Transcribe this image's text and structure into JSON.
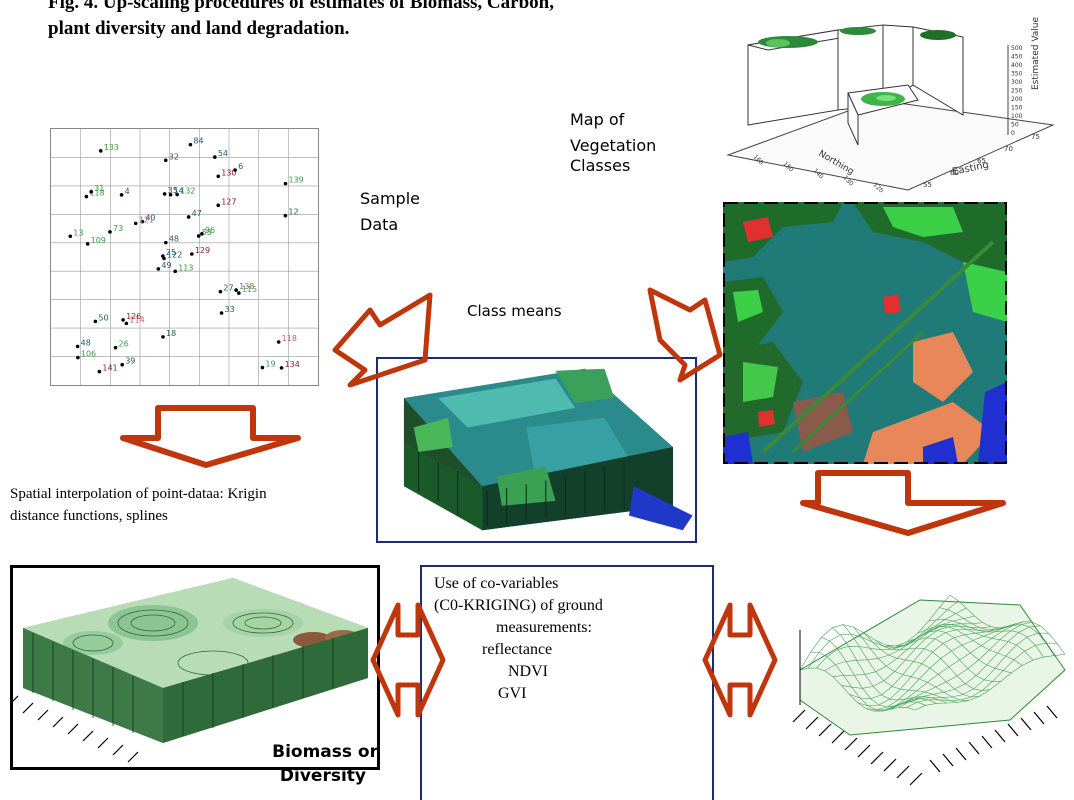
{
  "title": {
    "line1": "Fig. 4. Up-scaling procedures of estimates of Biomass, Carbon,",
    "line2": "plant diversity and land degradation."
  },
  "labels": {
    "map_of": "Map of",
    "vegetation": "Vegetation",
    "classes": "Classes",
    "sample": "Sample",
    "data": "Data",
    "class_means": "Class means",
    "interp_line1": "Spatial interpolation of point-dataa: Krigin",
    "interp_line2": "distance functions, splines",
    "biomass_line1": "Biomass or",
    "biomass_line2": "Diversity"
  },
  "covariables": {
    "line1": "Use of co-variables",
    "line2": "(C0-KRIGING) of ground",
    "line3": "measurements:",
    "line4": "reflectance",
    "line5": "NDVI",
    "line6": "GVI"
  },
  "mesh3d_axes": {
    "z_label": "Estimated Value",
    "z_ticks": [
      "0",
      "50",
      "100",
      "150",
      "200",
      "250",
      "300",
      "350",
      "400",
      "450",
      "500"
    ],
    "y_label": "Northing",
    "y_ticks": [
      "120",
      "130",
      "140",
      "150",
      "160"
    ],
    "x_label": "Easting",
    "x_ticks": [
      "55",
      "60",
      "65",
      "70",
      "75"
    ]
  },
  "scatter_points": [
    {
      "id": "113",
      "color": "#3a9a44"
    },
    {
      "id": "118",
      "color": "#3a9a44"
    },
    {
      "id": "122",
      "color": "#1f5a6a"
    },
    {
      "id": "48",
      "color": "#1f5a6a"
    },
    {
      "id": "55",
      "color": "#3a9a44"
    },
    {
      "id": "114",
      "color": "#c06080"
    },
    {
      "id": "54",
      "color": "#1f5a6a"
    },
    {
      "id": "132",
      "color": "#3a9a44"
    },
    {
      "id": "130",
      "color": "#8a2020"
    },
    {
      "id": "129",
      "color": "#8a2020"
    },
    {
      "id": "133",
      "color": "#3a9a44"
    },
    {
      "id": "134",
      "color": "#8a2020"
    },
    {
      "id": "109",
      "color": "#3a9a44"
    },
    {
      "id": "139",
      "color": "#3a9a44"
    },
    {
      "id": "49",
      "color": "#1f5a6a"
    },
    {
      "id": "127",
      "color": "#8a2020"
    },
    {
      "id": "141",
      "color": "#8a2020"
    },
    {
      "id": "35",
      "color": "#1f5a6a"
    },
    {
      "id": "47",
      "color": "#1f5a6a"
    },
    {
      "id": "50",
      "color": "#1f5a6a"
    },
    {
      "id": "40",
      "color": "#1f5a6a"
    },
    {
      "id": "106",
      "color": "#3a9a44"
    },
    {
      "id": "26",
      "color": "#3a9a44"
    },
    {
      "id": "14",
      "color": "#1f5a6a"
    },
    {
      "id": "96",
      "color": "#3a9a44"
    },
    {
      "id": "115",
      "color": "#c06080"
    },
    {
      "id": "31",
      "color": "#3a9a44"
    },
    {
      "id": "32",
      "color": "#1f5a6a"
    },
    {
      "id": "13",
      "color": "#3a9a44"
    },
    {
      "id": "27",
      "color": "#1f5a6a"
    },
    {
      "id": "12",
      "color": "#1f5a6a"
    },
    {
      "id": "25",
      "color": "#1f5a6a"
    },
    {
      "id": "18",
      "color": "#1f5a6a"
    },
    {
      "id": "48",
      "color": "#1f5a6a"
    },
    {
      "id": "4",
      "color": "#1f5a6a"
    },
    {
      "id": "6",
      "color": "#1f5a6a"
    },
    {
      "id": "126",
      "color": "#8a2020"
    },
    {
      "id": "19",
      "color": "#3a9a44"
    },
    {
      "id": "118",
      "color": "#c06080"
    },
    {
      "id": "138",
      "color": "#3a9a44"
    },
    {
      "id": "84",
      "color": "#1f5a6a"
    },
    {
      "id": "121",
      "color": "#c06080"
    },
    {
      "id": "73",
      "color": "#3a9a44"
    },
    {
      "id": "33",
      "color": "#1f5a6a"
    },
    {
      "id": "39",
      "color": "#1f5a6a"
    }
  ]
}
